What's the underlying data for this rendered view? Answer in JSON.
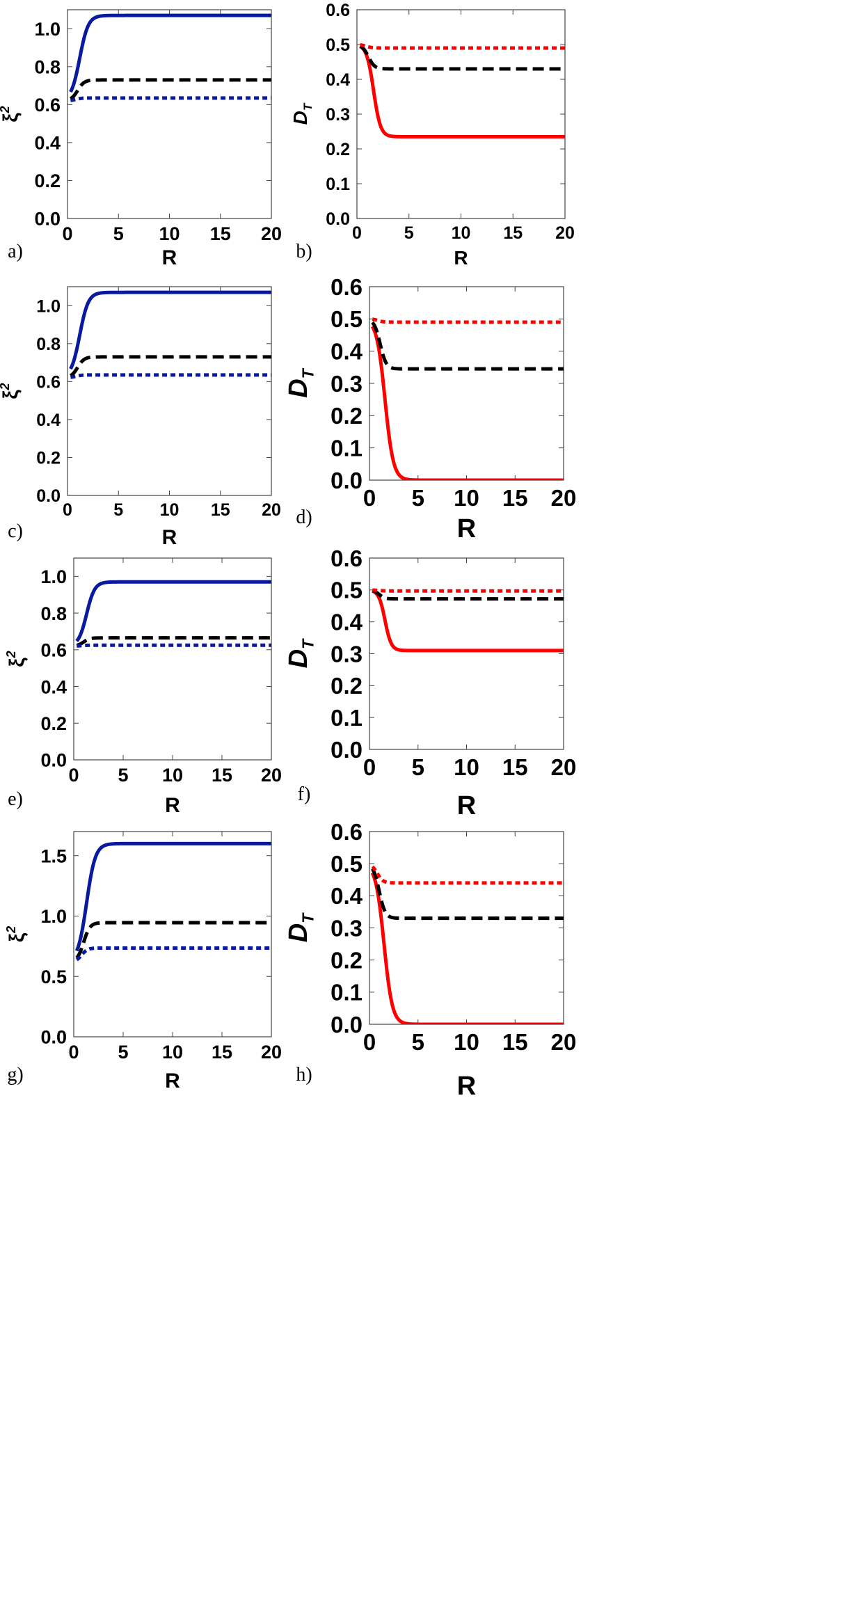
{
  "chart_data": [
    {
      "panel": "a)",
      "type": "line",
      "xlabel": "R",
      "ylabel": "ξ",
      "ylabel_sup": "2",
      "xlim": [
        0,
        20
      ],
      "ylim": [
        0,
        1.1
      ],
      "xticks": [
        "0",
        "5",
        "10",
        "15",
        "20"
      ],
      "yticks": [
        "0.0",
        "0.2",
        "0.4",
        "0.6",
        "0.8",
        "1.0"
      ],
      "series": [
        {
          "name": "solid",
          "color": "#0a1a9e",
          "style": "solid",
          "y0": 0.62,
          "y1": 1.07,
          "x0": 1.2,
          "k": 1.4
        },
        {
          "name": "dashed",
          "color": "#000000",
          "style": "dashed",
          "y0": 0.62,
          "y1": 0.73,
          "x0": 1.0,
          "k": 0.6
        },
        {
          "name": "dotted",
          "color": "#0a1a9e",
          "style": "dotted",
          "y0": 0.62,
          "y1": 0.635,
          "x0": 0.8,
          "k": 0.4
        }
      ]
    },
    {
      "panel": "b)",
      "type": "line",
      "xlabel": "R",
      "ylabel": "D",
      "ylabel_sub": "T",
      "xlim": [
        0,
        20
      ],
      "ylim": [
        0,
        0.6
      ],
      "xticks": [
        "0",
        "5",
        "10",
        "15",
        "20"
      ],
      "yticks": [
        "0.0",
        "0.1",
        "0.2",
        "0.3",
        "0.4",
        "0.5",
        "0.6"
      ],
      "series": [
        {
          "name": "solid",
          "color": "#ff0000",
          "style": "solid",
          "y0": 0.5,
          "y1": 0.235,
          "x0": 1.6,
          "k": 0.7
        },
        {
          "name": "dashed",
          "color": "#000000",
          "style": "dashed",
          "y0": 0.5,
          "y1": 0.43,
          "x0": 1.1,
          "k": 0.4
        },
        {
          "name": "dotted",
          "color": "#ff0000",
          "style": "dotted",
          "y0": 0.5,
          "y1": 0.49,
          "x0": 0.9,
          "k": 0.3
        }
      ]
    },
    {
      "panel": "c)",
      "type": "line",
      "xlabel": "R",
      "ylabel": "ξ",
      "ylabel_sup": "2",
      "xlim": [
        0,
        20
      ],
      "ylim": [
        0,
        1.1
      ],
      "xticks": [
        "0",
        "5",
        "10",
        "15",
        "20"
      ],
      "yticks": [
        "0.0",
        "0.2",
        "0.4",
        "0.6",
        "0.8",
        "1.0"
      ],
      "series": [
        {
          "name": "solid",
          "color": "#0a1a9e",
          "style": "solid",
          "y0": 0.62,
          "y1": 1.07,
          "x0": 1.2,
          "k": 1.4
        },
        {
          "name": "dashed",
          "color": "#000000",
          "style": "dashed",
          "y0": 0.62,
          "y1": 0.73,
          "x0": 1.0,
          "k": 0.6
        },
        {
          "name": "dotted",
          "color": "#0a1a9e",
          "style": "dotted",
          "y0": 0.62,
          "y1": 0.635,
          "x0": 0.8,
          "k": 0.4
        }
      ]
    },
    {
      "panel": "d)",
      "type": "line",
      "xlabel": "R",
      "ylabel": "D",
      "ylabel_sub": "T",
      "xlim": [
        0,
        20
      ],
      "ylim": [
        0,
        0.6
      ],
      "xticks": [
        "0",
        "5",
        "10",
        "15",
        "20"
      ],
      "yticks": [
        "0.0",
        "0.1",
        "0.2",
        "0.3",
        "0.4",
        "0.5",
        "0.6"
      ],
      "series": [
        {
          "name": "solid",
          "color": "#ff0000",
          "style": "solid",
          "y0": 0.5,
          "y1": 0.0,
          "x0": 1.6,
          "k": 1.5
        },
        {
          "name": "dashed",
          "color": "#000000",
          "style": "dashed",
          "y0": 0.5,
          "y1": 0.345,
          "x0": 1.1,
          "k": 0.5
        },
        {
          "name": "dotted",
          "color": "#ff0000",
          "style": "dotted",
          "y0": 0.5,
          "y1": 0.49,
          "x0": 0.9,
          "k": 0.3
        }
      ]
    },
    {
      "panel": "e)",
      "type": "line",
      "xlabel": "R",
      "ylabel": "ξ",
      "ylabel_sup": "2",
      "xlim": [
        0,
        20
      ],
      "ylim": [
        0,
        1.1
      ],
      "xticks": [
        "0",
        "5",
        "10",
        "15",
        "20"
      ],
      "yticks": [
        "0.0",
        "0.2",
        "0.4",
        "0.6",
        "0.8",
        "1.0"
      ],
      "series": [
        {
          "name": "solid",
          "color": "#0a1a9e",
          "style": "solid",
          "y0": 0.62,
          "y1": 0.97,
          "x0": 1.3,
          "k": 1.3
        },
        {
          "name": "dashed",
          "color": "#000000",
          "style": "dashed",
          "y0": 0.62,
          "y1": 0.665,
          "x0": 1.0,
          "k": 0.5
        },
        {
          "name": "dotted",
          "color": "#0a1a9e",
          "style": "dotted",
          "y0": 0.62,
          "y1": 0.625,
          "x0": 0.8,
          "k": 0.4
        }
      ]
    },
    {
      "panel": "f)",
      "type": "line",
      "xlabel": "R",
      "ylabel": "D",
      "ylabel_sub": "T",
      "xlim": [
        0,
        20
      ],
      "ylim": [
        0,
        0.6
      ],
      "xticks": [
        "0",
        "5",
        "10",
        "15",
        "20"
      ],
      "yticks": [
        "0.0",
        "0.1",
        "0.2",
        "0.3",
        "0.4",
        "0.5",
        "0.6"
      ],
      "series": [
        {
          "name": "solid",
          "color": "#ff0000",
          "style": "solid",
          "y0": 0.5,
          "y1": 0.31,
          "x0": 1.6,
          "k": 0.6
        },
        {
          "name": "dashed",
          "color": "#000000",
          "style": "dashed",
          "y0": 0.5,
          "y1": 0.472,
          "x0": 1.0,
          "k": 0.3
        },
        {
          "name": "dotted",
          "color": "#ff0000",
          "style": "dotted",
          "y0": 0.5,
          "y1": 0.497,
          "x0": 0.9,
          "k": 0.3
        }
      ]
    },
    {
      "panel": "g)",
      "type": "line",
      "xlabel": "R",
      "ylabel": "ξ",
      "ylabel_sup": "2",
      "xlim": [
        0,
        20
      ],
      "ylim": [
        0,
        1.7
      ],
      "xticks": [
        "0",
        "5",
        "10",
        "15",
        "20"
      ],
      "yticks": [
        "0.0",
        "0.5",
        "1.0",
        "1.5"
      ],
      "series": [
        {
          "name": "solid",
          "color": "#0a1a9e",
          "style": "solid",
          "y0": 0.62,
          "y1": 1.6,
          "x0": 1.3,
          "k": 1.6
        },
        {
          "name": "dashed",
          "color": "#000000",
          "style": "dashed",
          "y0": 0.62,
          "y1": 0.945,
          "x0": 1.0,
          "k": 0.6
        },
        {
          "name": "dotted",
          "color": "#0a1a9e",
          "style": "dotted",
          "y0": 0.62,
          "y1": 0.735,
          "x0": 0.8,
          "k": 0.4
        }
      ]
    },
    {
      "panel": "h)",
      "type": "line",
      "xlabel": "R",
      "ylabel": "D",
      "ylabel_sub": "T",
      "xlim": [
        0,
        20
      ],
      "ylim": [
        0,
        0.6
      ],
      "xticks": [
        "0",
        "5",
        "10",
        "15",
        "20"
      ],
      "yticks": [
        "0.0",
        "0.1",
        "0.2",
        "0.3",
        "0.4",
        "0.5",
        "0.6"
      ],
      "series": [
        {
          "name": "solid",
          "color": "#ff0000",
          "style": "solid",
          "y0": 0.5,
          "y1": 0.0,
          "x0": 1.5,
          "k": 1.5
        },
        {
          "name": "dashed",
          "color": "#000000",
          "style": "dashed",
          "y0": 0.5,
          "y1": 0.33,
          "x0": 1.0,
          "k": 0.5
        },
        {
          "name": "dotted",
          "color": "#ff0000",
          "style": "dotted",
          "y0": 0.5,
          "y1": 0.44,
          "x0": 0.8,
          "k": 0.4
        }
      ]
    }
  ]
}
